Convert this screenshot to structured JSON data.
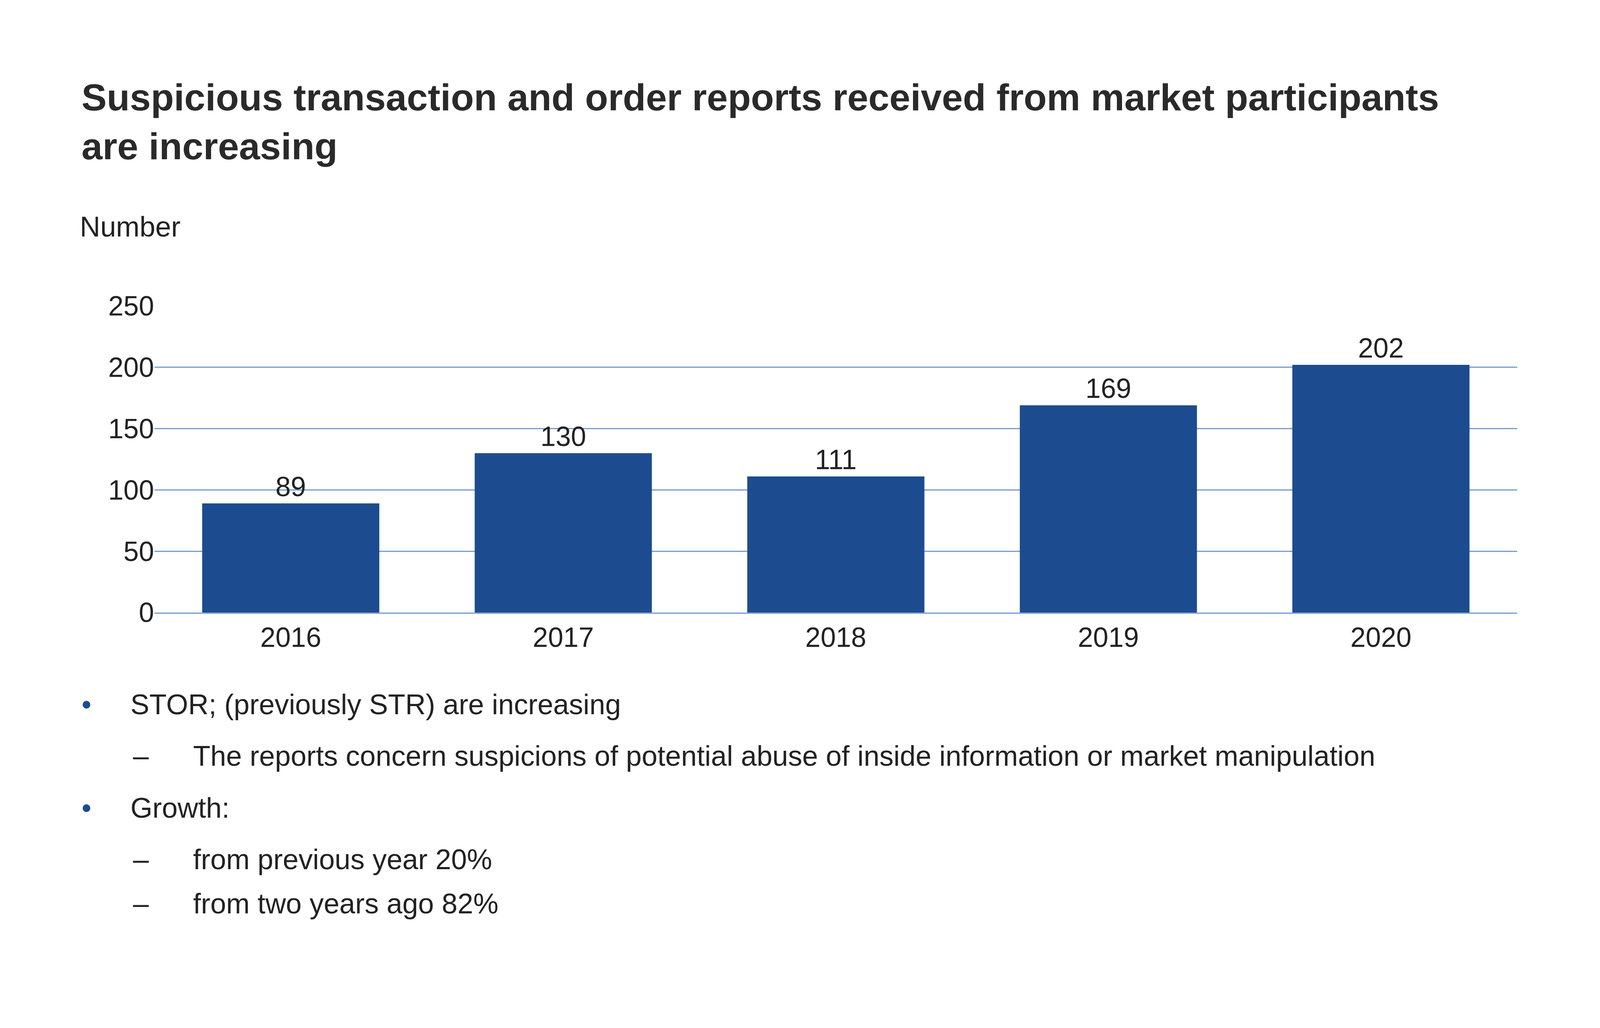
{
  "chart_data": {
    "type": "bar",
    "title": "Suspicious transaction and order reports received from market participants are increasing",
    "y_label": "Number",
    "categories": [
      "2016",
      "2017",
      "2018",
      "2019",
      "2020"
    ],
    "values": [
      89,
      130,
      111,
      169,
      202
    ],
    "color": "#1c4c8f",
    "ylim": [
      0,
      250
    ],
    "yticks": [
      0,
      50,
      100,
      150,
      200,
      250
    ],
    "grid": true,
    "data_labels": true,
    "annotations": [
      {
        "text": "STOR; (previously STR) are increasing",
        "items": [
          "The reports concern suspicions of potential abuse of inside information or market manipulation"
        ]
      },
      {
        "text": "Growth:",
        "items": [
          "from previous year 20%",
          "from two years ago 82%"
        ]
      }
    ]
  }
}
